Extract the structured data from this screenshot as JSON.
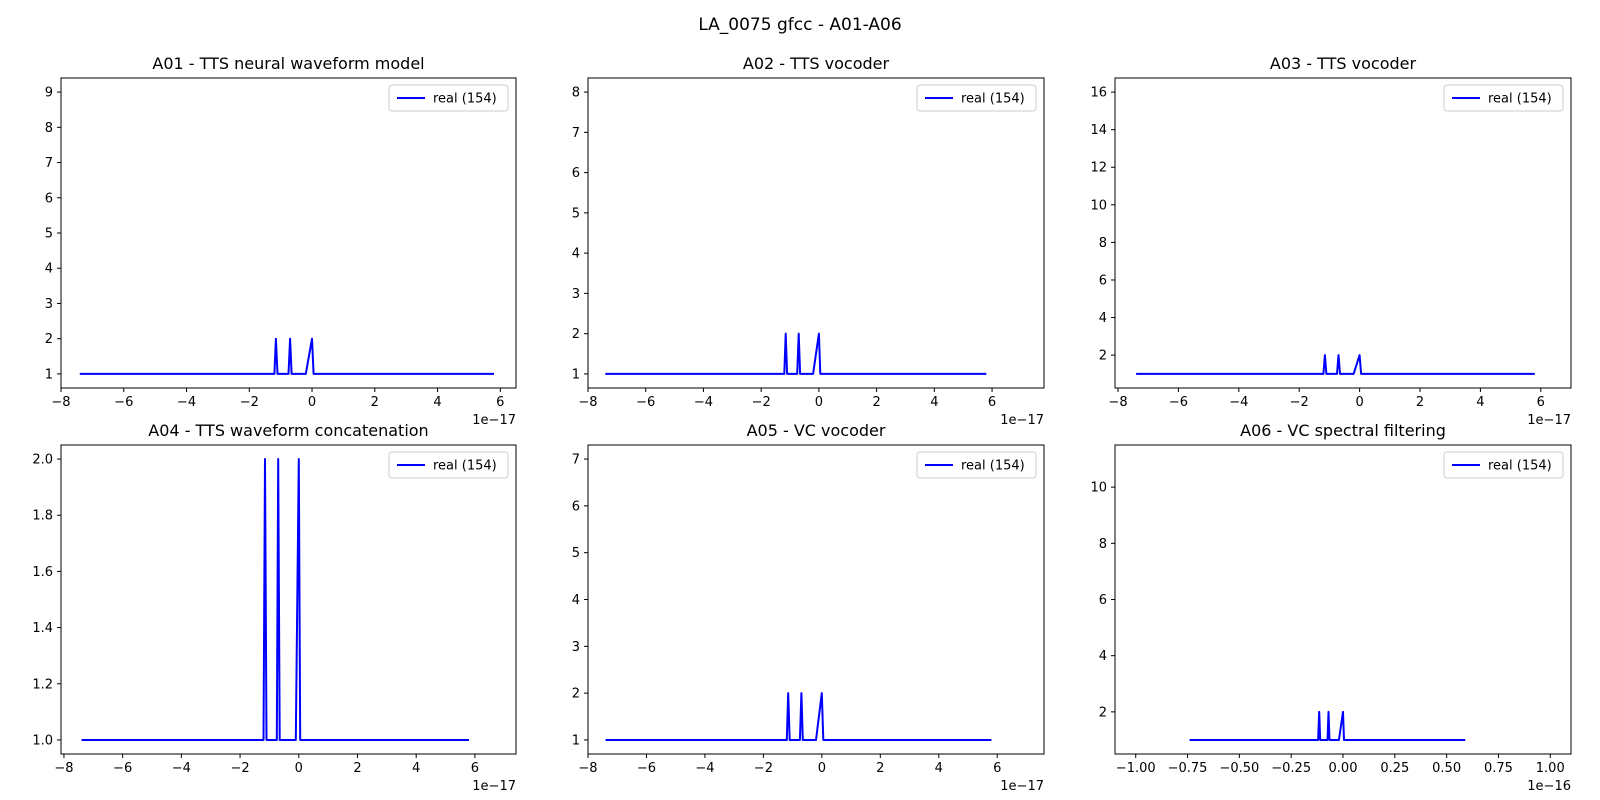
{
  "figure_title": "LA_0075 gfcc - A01-A06",
  "chart_data": [
    {
      "type": "line",
      "title": "A01 - TTS neural waveform model",
      "x_offset_label": "1e−17",
      "xlim": [
        -8,
        6.5
      ],
      "ylim": [
        0.6,
        9.4
      ],
      "xticks": [
        -8,
        -6,
        -4,
        -2,
        0,
        2,
        4,
        6
      ],
      "xtick_labels": [
        "−8",
        "−6",
        "−4",
        "−2",
        "0",
        "2",
        "4",
        "6"
      ],
      "yticks": [
        1,
        2,
        3,
        4,
        5,
        6,
        7,
        8,
        9
      ],
      "ytick_labels": [
        "1",
        "2",
        "3",
        "4",
        "5",
        "6",
        "7",
        "8",
        "9"
      ],
      "legend_position": "upper-right",
      "series": [
        {
          "name": "real (154)",
          "color": "#0000ff",
          "x": [
            -7.4,
            -1.2,
            -1.15,
            -1.1,
            -0.75,
            -0.7,
            -0.65,
            -0.2,
            0.0,
            0.05,
            5.8
          ],
          "y": [
            1,
            1,
            2,
            1,
            1,
            2,
            1,
            1,
            2,
            1,
            1
          ]
        }
      ]
    },
    {
      "type": "line",
      "title": "A02 - TTS vocoder",
      "x_offset_label": "1e−17",
      "xlim": [
        -8,
        7.8
      ],
      "ylim": [
        0.65,
        8.35
      ],
      "xticks": [
        -8,
        -6,
        -4,
        -2,
        0,
        2,
        4,
        6
      ],
      "xtick_labels": [
        "−8",
        "−6",
        "−4",
        "−2",
        "0",
        "2",
        "4",
        "6"
      ],
      "yticks": [
        1,
        2,
        3,
        4,
        5,
        6,
        7,
        8
      ],
      "ytick_labels": [
        "1",
        "2",
        "3",
        "4",
        "5",
        "6",
        "7",
        "8"
      ],
      "legend_position": "upper-right",
      "series": [
        {
          "name": "real (154)",
          "color": "#0000ff",
          "x": [
            -7.4,
            -1.2,
            -1.15,
            -1.1,
            -0.75,
            -0.7,
            -0.65,
            -0.2,
            0.0,
            0.05,
            5.8
          ],
          "y": [
            1,
            1,
            2,
            1,
            1,
            2,
            1,
            1,
            2,
            1,
            1
          ]
        }
      ]
    },
    {
      "type": "line",
      "title": "A03 - TTS vocoder",
      "x_offset_label": "1e−17",
      "xlim": [
        -8.1,
        7.0
      ],
      "ylim": [
        0.25,
        16.75
      ],
      "xticks": [
        -8,
        -6,
        -4,
        -2,
        0,
        2,
        4,
        6
      ],
      "xtick_labels": [
        "−8",
        "−6",
        "−4",
        "−2",
        "0",
        "2",
        "4",
        "6"
      ],
      "yticks": [
        2,
        4,
        6,
        8,
        10,
        12,
        14,
        16
      ],
      "ytick_labels": [
        "2",
        "4",
        "6",
        "8",
        "10",
        "12",
        "14",
        "16"
      ],
      "legend_position": "upper-right",
      "series": [
        {
          "name": "real (154)",
          "color": "#0000ff",
          "x": [
            -7.4,
            -1.2,
            -1.15,
            -1.1,
            -0.75,
            -0.7,
            -0.65,
            -0.2,
            0.0,
            0.05,
            5.8
          ],
          "y": [
            1,
            1,
            2,
            1,
            1,
            2,
            1,
            1,
            2,
            1,
            1
          ]
        }
      ]
    },
    {
      "type": "line",
      "title": "A04 - TTS waveform concatenation",
      "x_offset_label": "1e−17",
      "xlim": [
        -8.1,
        7.4
      ],
      "ylim": [
        0.95,
        2.05
      ],
      "xticks": [
        -8,
        -6,
        -4,
        -2,
        0,
        2,
        4,
        6
      ],
      "xtick_labels": [
        "−8",
        "−6",
        "−4",
        "−2",
        "0",
        "2",
        "4",
        "6"
      ],
      "yticks": [
        1.0,
        1.2,
        1.4,
        1.6,
        1.8,
        2.0
      ],
      "ytick_labels": [
        "1.0",
        "1.2",
        "1.4",
        "1.6",
        "1.8",
        "2.0"
      ],
      "legend_position": "upper-right",
      "series": [
        {
          "name": "real (154)",
          "color": "#0000ff",
          "x": [
            -7.4,
            -1.2,
            -1.15,
            -1.1,
            -0.75,
            -0.7,
            -0.65,
            -0.1,
            0.0,
            0.05,
            5.8
          ],
          "y": [
            1,
            1,
            2,
            1,
            1,
            2,
            1,
            1,
            2,
            1,
            1
          ]
        }
      ]
    },
    {
      "type": "line",
      "title": "A05 - VC vocoder",
      "x_offset_label": "1e−17",
      "xlim": [
        -8,
        7.6
      ],
      "ylim": [
        0.7,
        7.3
      ],
      "xticks": [
        -8,
        -6,
        -4,
        -2,
        0,
        2,
        4,
        6
      ],
      "xtick_labels": [
        "−8",
        "−6",
        "−4",
        "−2",
        "0",
        "2",
        "4",
        "6"
      ],
      "yticks": [
        1,
        2,
        3,
        4,
        5,
        6,
        7
      ],
      "ytick_labels": [
        "1",
        "2",
        "3",
        "4",
        "5",
        "6",
        "7"
      ],
      "legend_position": "upper-right",
      "series": [
        {
          "name": "real (154)",
          "color": "#0000ff",
          "x": [
            -7.4,
            -1.2,
            -1.15,
            -1.1,
            -0.75,
            -0.7,
            -0.65,
            -0.2,
            0.0,
            0.05,
            5.8
          ],
          "y": [
            1,
            1,
            2,
            1,
            1,
            2,
            1,
            1,
            2,
            1,
            1
          ]
        }
      ]
    },
    {
      "type": "line",
      "title": "A06 - VC spectral filtering",
      "x_offset_label": "1e−16",
      "xlim": [
        -1.1,
        1.1
      ],
      "ylim": [
        0.5,
        11.5
      ],
      "xticks": [
        -1.0,
        -0.75,
        -0.5,
        -0.25,
        0.0,
        0.25,
        0.5,
        0.75,
        1.0
      ],
      "xtick_labels": [
        "−1.00",
        "−0.75",
        "−0.50",
        "−0.25",
        "0.00",
        "0.25",
        "0.50",
        "0.75",
        "1.00"
      ],
      "yticks": [
        2,
        4,
        6,
        8,
        10
      ],
      "ytick_labels": [
        "2",
        "4",
        "6",
        "8",
        "10"
      ],
      "legend_position": "upper-right",
      "series": [
        {
          "name": "real (154)",
          "color": "#0000ff",
          "x": [
            -0.74,
            -0.12,
            -0.115,
            -0.11,
            -0.075,
            -0.07,
            -0.065,
            -0.02,
            0.0,
            0.005,
            0.59
          ],
          "y": [
            1,
            1,
            2,
            1,
            1,
            2,
            1,
            1,
            2,
            1,
            1
          ]
        }
      ]
    }
  ]
}
